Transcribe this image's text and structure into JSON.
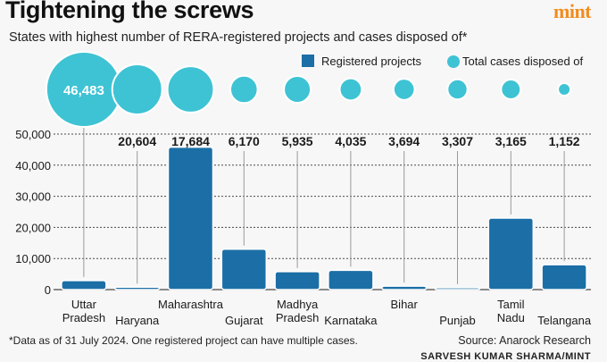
{
  "header": {
    "title": "Tightening the screws",
    "brand": "mint",
    "subtitle": "States with highest number of RERA-registered projects and cases disposed of*"
  },
  "footer": {
    "footnote": "*Data as of 31 July 2024. One registered project can have multiple cases.",
    "source": "Source: Anarock Research",
    "credit": "SARVESH KUMAR SHARMA/MINT"
  },
  "colors": {
    "bar": "#1b6fa6",
    "bar_stroke": "#0f4f7a",
    "bubble": "#3ec3d4",
    "bubble_stroke": "#ffffff",
    "grid": "#4a4a4a",
    "leader": "#9a9a9a"
  },
  "chart_data": {
    "type": "bar",
    "title": "Tightening the screws",
    "subtitle": "States with highest number of RERA-registered projects and cases disposed of*",
    "categories": [
      [
        "Uttar",
        "Pradesh"
      ],
      [
        "Haryana"
      ],
      [
        "Maharashtra"
      ],
      [
        "Gujarat"
      ],
      [
        "Madhya",
        "Pradesh"
      ],
      [
        "Karnataka"
      ],
      [
        "Bihar"
      ],
      [
        "Punjab"
      ],
      [
        "Tamil",
        "Nadu"
      ],
      [
        "Telangana"
      ]
    ],
    "series": [
      {
        "name": "Registered projects",
        "type": "bar",
        "values": [
          2900,
          800,
          45800,
          13000,
          5800,
          6200,
          1100,
          600,
          23000,
          8000
        ]
      },
      {
        "name": "Total cases disposed of",
        "type": "bubble",
        "values": [
          46483,
          20604,
          17684,
          6170,
          5935,
          4035,
          3694,
          3307,
          3165,
          1152
        ],
        "labels": [
          "46,483",
          "20,604",
          "17,684",
          "6,170",
          "5,935",
          "4,035",
          "3,694",
          "3,307",
          "3,165",
          "1,152"
        ]
      }
    ],
    "y_ticks": [
      0,
      10000,
      20000,
      30000,
      40000,
      50000
    ],
    "y_tick_labels": [
      "0",
      "10,000",
      "20,000",
      "30,000",
      "40,000",
      "50,000"
    ],
    "ylim": [
      0,
      50000
    ],
    "legend": [
      "Registered projects",
      "Total cases disposed of"
    ],
    "legend_position": "top-right",
    "grid": true
  }
}
